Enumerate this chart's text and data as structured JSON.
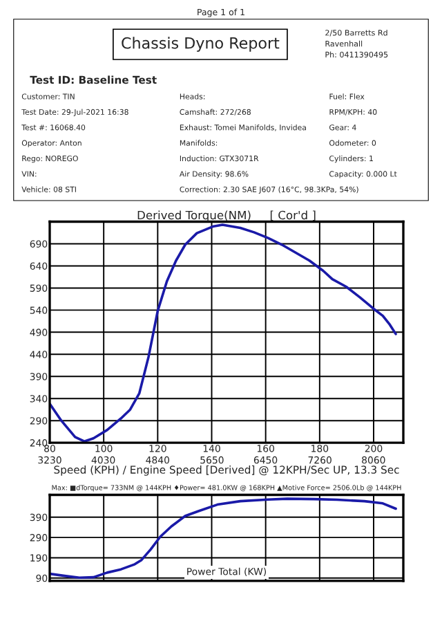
{
  "chart_data": [
    {
      "type": "other",
      "title": "Chassis Dyno Report",
      "subtitle": "Page 1 of 1",
      "annotations": [
        "2/50 Barretts Rd",
        "Ravenhall",
        "Ph: 0411390495",
        "Test ID: Baseline Test",
        "Customer: TIN",
        "Heads:",
        "Fuel: Flex",
        "Test Date: 29-Jul-2021 16:38",
        "Camshaft: 272/268",
        "RPM/KPH: 40",
        "Test #: 16068.40",
        "Exhaust: Tomei Manifolds, Invidea",
        "Gear: 4",
        "Operator: Anton",
        "Manifolds:",
        "Odometer: 0",
        "Rego: NOREGO",
        "Induction: GTX3071R",
        "Cylinders: 1",
        "VIN:",
        "Air Density: 98.6%",
        "Capacity: 0.000 Lt",
        "Vehicle: 08 STI",
        "Correction: 2.30 SAE J607 (16°C, 98.3KPa, 54%)"
      ]
    },
    {
      "type": "line",
      "title": "Derived Torque(NM)     [ Cor'd ]",
      "xlabel": "Speed (KPH) / Engine Speed [Derived] @ 12KPH/Sec UP, 13.3 Sec",
      "xlim": [
        80,
        211
      ],
      "ylim": [
        240,
        740
      ],
      "xticks": [
        80,
        100,
        120,
        140,
        160,
        180,
        200
      ],
      "x2lim": [
        3230,
        8505
      ],
      "x2ticks": [
        3230,
        4030,
        4840,
        5650,
        6450,
        7260,
        8060
      ],
      "yticks": [
        240,
        290,
        340,
        390,
        440,
        490,
        540,
        590,
        640,
        690
      ],
      "grid": true,
      "marker": "none",
      "line_style": "solid",
      "series": [
        {
          "color": "#1a1aa8",
          "x": [
            80,
            84.3,
            89.4,
            92.8,
            96.2,
            101.3,
            106.4,
            109.8,
            113.2,
            116.6,
            120,
            123.4,
            126.8,
            130.2,
            134.5,
            140.4,
            144,
            150.6,
            155.7,
            160.9,
            166,
            171.1,
            176.2,
            181.3,
            184.7,
            189.8,
            194.9,
            200,
            203.4,
            206,
            208.2
          ],
          "values": [
            328,
            290,
            253,
            243,
            250,
            269,
            295,
            315,
            352,
            434,
            538,
            605,
            652,
            688,
            714,
            729,
            733,
            726,
            716,
            703,
            688,
            670,
            652,
            629,
            610,
            593,
            569,
            543,
            527,
            507,
            486
          ]
        }
      ]
    },
    {
      "type": "line",
      "title": "Power Total (KW)",
      "annotations": [
        "Max: ■dTorque= 733NM @ 144KPH ♦Power= 481.0KW @ 168KPH ▲Motive Force= 2506.0Lb @ 144KPH"
      ],
      "xlim": [
        80,
        211
      ],
      "ylim": [
        76,
        500
      ],
      "xticks": [
        80,
        100,
        120,
        140,
        160,
        180,
        200
      ],
      "yticks": [
        90,
        190,
        290,
        390
      ],
      "tick_labels": "y",
      "grid": true,
      "marker": "none",
      "line_style": "solid",
      "series": [
        {
          "color": "#1a1aa8",
          "x": [
            80,
            86,
            91,
            96.2,
            101.3,
            106.4,
            111.5,
            114,
            117.4,
            120.9,
            125.1,
            130.2,
            135.3,
            142.1,
            150.6,
            160.9,
            168,
            177.9,
            186.4,
            196.6,
            203.4,
            208.2
          ],
          "values": [
            111,
            100,
            92,
            94,
            117,
            133,
            158,
            179,
            231,
            293,
            345,
            396,
            421,
            452,
            469,
            477,
            481,
            479,
            476,
            469,
            458,
            432
          ]
        }
      ]
    }
  ]
}
